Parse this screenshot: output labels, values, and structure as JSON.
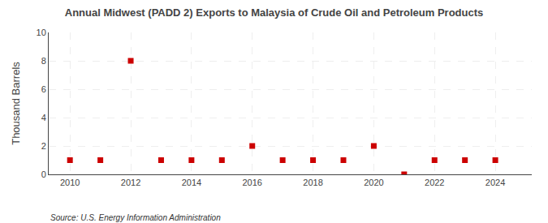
{
  "chart_data": {
    "type": "scatter",
    "title": "Annual Midwest (PADD 2) Exports to Malaysia of Crude Oil and Petroleum Products",
    "y_label": "Thousand Barrels",
    "source": "Source: U.S. Energy Information Administration",
    "x": [
      2010,
      2011,
      2012,
      2013,
      2014,
      2015,
      2016,
      2017,
      2018,
      2019,
      2020,
      2021,
      2022,
      2023,
      2024
    ],
    "values": [
      1,
      1,
      8,
      1,
      1,
      1,
      2,
      1,
      1,
      1,
      2,
      0,
      1,
      1,
      1
    ],
    "color": "#cc0000",
    "marker": "square",
    "xlim": [
      2009.3,
      2025.2
    ],
    "xticks": [
      2010,
      2012,
      2014,
      2016,
      2018,
      2020,
      2022,
      2024
    ],
    "ylim": [
      0,
      10
    ],
    "yticks": [
      0,
      2,
      4,
      6,
      8,
      10
    ],
    "grid": true
  }
}
